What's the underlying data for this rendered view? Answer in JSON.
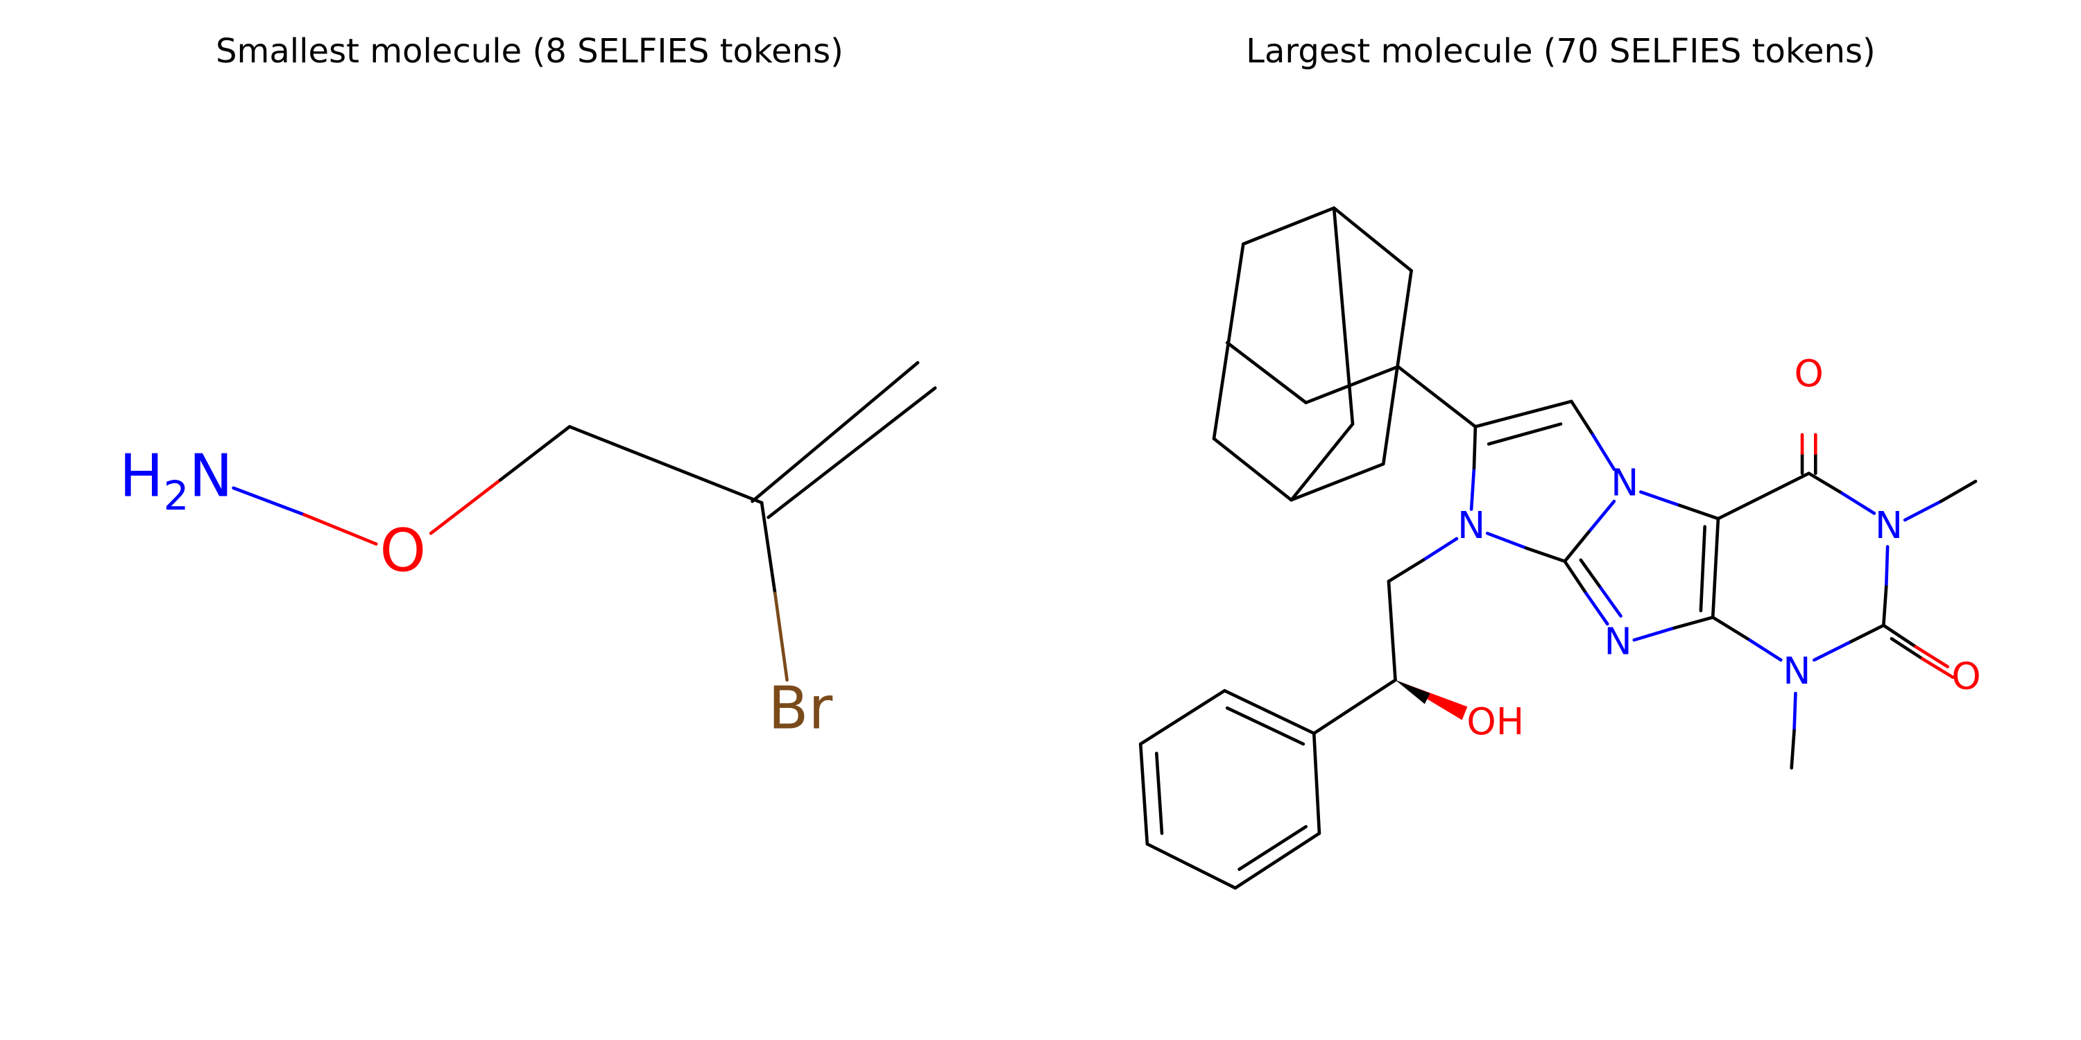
{
  "left": {
    "title": "Smallest molecule (8 SELFIES tokens)",
    "amine": {
      "h": "H",
      "subscript": "2",
      "n": "N"
    },
    "atoms": [
      "O",
      "Br"
    ]
  },
  "right": {
    "title": "Largest molecule (70 SELFIES tokens)",
    "atoms": [
      "N",
      "N",
      "N",
      "N",
      "N",
      "O",
      "O",
      "OH"
    ]
  }
}
